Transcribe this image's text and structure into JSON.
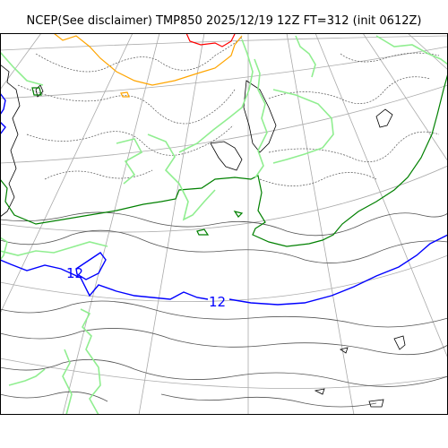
{
  "title": "NCEP(See disclaimer) TMP850 2025/12/19 12Z FT=312 (init 0612Z)",
  "contour_labels": [
    {
      "id": "blue-west",
      "text": "12"
    },
    {
      "id": "blue-center",
      "text": "12"
    }
  ],
  "colors": {
    "coastline": "#000000",
    "graticule": "#aaaaaa",
    "temp_contour": "#555555",
    "orange_isotherm": "#ffa500",
    "red_isotherm": "#ff0000",
    "blue_isotherm": "#0000ff",
    "darkgreen_isotherm": "#008000",
    "lightgreen_isotherm": "#90ee90"
  }
}
